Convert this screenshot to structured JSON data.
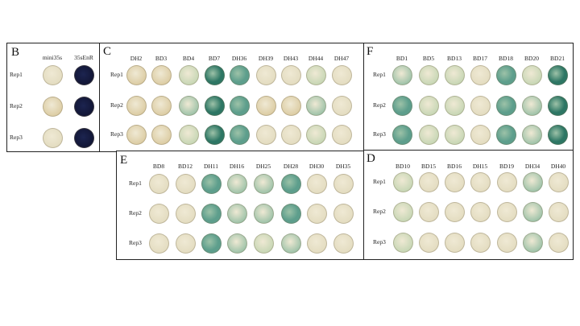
{
  "colors": {
    "beige": "#e3dcc0",
    "tan": "#dccca3",
    "light_green": "#c6d6b4",
    "mid_green": "#9dc2a8",
    "teal": "#5d9e8c",
    "dark_teal": "#2d7664",
    "navy": "#121636"
  },
  "panels": [
    {
      "id": "B",
      "label": "B",
      "columns": [
        "mini35s",
        "35sEnR"
      ],
      "rows": [
        "Rep1",
        "Rep2",
        "Rep3"
      ],
      "wells": [
        [
          "beige",
          "navy"
        ],
        [
          "tan",
          "navy"
        ],
        [
          "beige",
          "navy"
        ]
      ]
    },
    {
      "id": "C",
      "label": "C",
      "columns": [
        "DH2",
        "BD3",
        "BD4",
        "BD7",
        "DH36",
        "DH39",
        "DH43",
        "DH44",
        "DH47"
      ],
      "rows": [
        "Rep1",
        "Rep2",
        "Rep3"
      ],
      "wells": [
        [
          "tan",
          "tan",
          "light_green",
          "dark_teal",
          "teal",
          "beige",
          "beige",
          "light_green",
          "beige"
        ],
        [
          "tan",
          "tan",
          "mid_green",
          "dark_teal",
          "teal",
          "tan",
          "tan",
          "mid_green",
          "beige"
        ],
        [
          "tan",
          "tan",
          "light_green",
          "dark_teal",
          "teal",
          "beige",
          "beige",
          "light_green",
          "beige"
        ]
      ]
    },
    {
      "id": "F",
      "label": "F",
      "columns": [
        "BD1",
        "BD5",
        "BD13",
        "BD17",
        "BD18",
        "BD20",
        "BD21"
      ],
      "rows": [
        "Rep1",
        "Rep2",
        "Rep3"
      ],
      "wells": [
        [
          "mid_green",
          "light_green",
          "light_green",
          "beige",
          "teal",
          "light_green",
          "dark_teal"
        ],
        [
          "teal",
          "light_green",
          "light_green",
          "beige",
          "teal",
          "mid_green",
          "dark_teal"
        ],
        [
          "teal",
          "light_green",
          "light_green",
          "beige",
          "teal",
          "mid_green",
          "dark_teal"
        ]
      ]
    },
    {
      "id": "E",
      "label": "E",
      "columns": [
        "BD8",
        "BD12",
        "DH11",
        "DH16",
        "DH25",
        "DH28",
        "DH30",
        "DH35"
      ],
      "rows": [
        "Rep1",
        "Rep2",
        "Rep3"
      ],
      "wells": [
        [
          "beige",
          "beige",
          "teal",
          "mid_green",
          "mid_green",
          "teal",
          "beige",
          "beige"
        ],
        [
          "beige",
          "beige",
          "teal",
          "mid_green",
          "mid_green",
          "teal",
          "beige",
          "beige"
        ],
        [
          "beige",
          "beige",
          "teal",
          "mid_green",
          "light_green",
          "mid_green",
          "beige",
          "beige"
        ]
      ]
    },
    {
      "id": "D",
      "label": "D",
      "columns": [
        "BD10",
        "BD15",
        "BD16",
        "DH15",
        "BD19",
        "DH34",
        "DH40"
      ],
      "rows": [
        "Rep1",
        "Rep2",
        "Rep3"
      ],
      "wells": [
        [
          "light_green",
          "beige",
          "beige",
          "beige",
          "beige",
          "mid_green",
          "beige"
        ],
        [
          "light_green",
          "beige",
          "beige",
          "beige",
          "beige",
          "mid_green",
          "beige"
        ],
        [
          "light_green",
          "beige",
          "beige",
          "beige",
          "beige",
          "mid_green",
          "beige"
        ]
      ]
    }
  ]
}
